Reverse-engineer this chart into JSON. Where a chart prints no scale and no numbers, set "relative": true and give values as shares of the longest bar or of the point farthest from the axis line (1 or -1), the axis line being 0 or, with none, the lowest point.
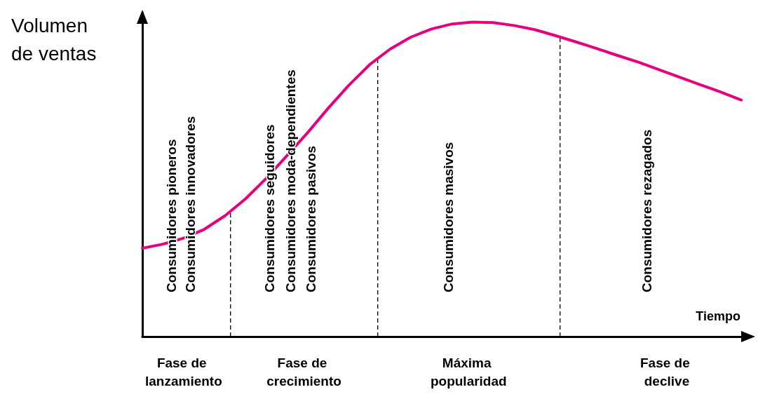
{
  "chart_data": {
    "type": "line",
    "relative": true,
    "ylabel": "Volumen de ventas",
    "xlabel": "Tiempo",
    "categories": [
      null,
      null,
      null,
      null,
      null,
      null,
      null,
      null,
      null,
      null,
      null,
      null,
      null,
      null,
      null,
      null,
      null,
      null,
      null,
      null,
      null,
      null,
      null,
      null,
      null,
      null,
      null,
      null,
      null,
      null
    ],
    "series": [
      {
        "color": "#e6007e",
        "values": [
          0.281,
          0.294,
          0.313,
          0.341,
          0.384,
          0.438,
          0.503,
          0.575,
          0.648,
          0.726,
          0.799,
          0.864,
          0.914,
          0.952,
          0.978,
          0.994,
          1,
          0.998,
          0.989,
          0.976,
          0.957,
          0.937,
          0.916,
          0.894,
          0.873,
          0.849,
          0.825,
          0.801,
          0.778,
          0.752
        ]
      }
    ],
    "marker": "none",
    "line_style": "solid",
    "annotations": [
      "Consumidores pioneros",
      "Consumidores innovadores",
      "Consumidores seguidores",
      "Consumidores moda-dependientes",
      "Consumidores pasivos",
      "Consumidores masivos",
      "Consumidores rezagados",
      "Fase de lanzamiento",
      "Fase de crecimiento",
      "Máxima popularidad",
      "Fase de declive"
    ]
  }
}
